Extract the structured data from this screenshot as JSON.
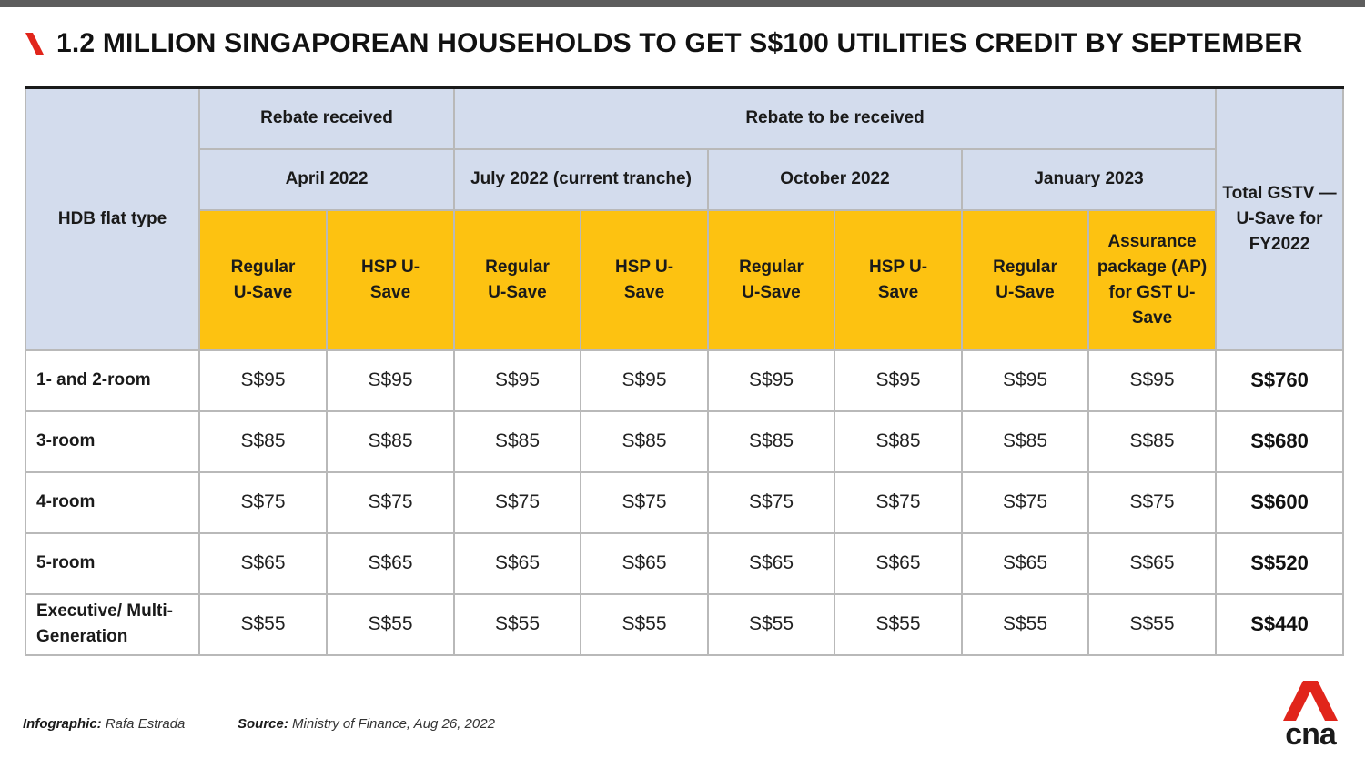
{
  "title": "1.2 MILLION SINGAPOREAN HOUSEHOLDS TO GET S$100 UTILITIES CREDIT BY SEPTEMBER",
  "icons": {
    "title_mark": "red-slash-icon",
    "logo": "cna-logo-icon"
  },
  "colors": {
    "accent_red": "#e1251b",
    "header_blue": "#d3dced",
    "header_yellow": "#fdc211"
  },
  "table": {
    "flat_type_header": "HDB flat type",
    "group_headers": {
      "received": "Rebate received",
      "to_be_received": "Rebate to be received"
    },
    "periods": [
      "April 2022",
      "July 2022 (current tranche)",
      "October 2022",
      "January 2023"
    ],
    "subcolumns": [
      "Regular U-Save",
      "HSP U-Save",
      "Regular U-Save",
      "HSP U-Save",
      "Regular U-Save",
      "HSP U-Save",
      "Regular U-Save",
      "Assurance package (AP) for GST U-Save"
    ],
    "total_header": "Total GSTV — U-Save for FY2022",
    "rows": [
      {
        "label": "1- and 2-room",
        "values": [
          "S$95",
          "S$95",
          "S$95",
          "S$95",
          "S$95",
          "S$95",
          "S$95",
          "S$95"
        ],
        "total": "S$760"
      },
      {
        "label": "3-room",
        "values": [
          "S$85",
          "S$85",
          "S$85",
          "S$85",
          "S$85",
          "S$85",
          "S$85",
          "S$85"
        ],
        "total": "S$680"
      },
      {
        "label": "4-room",
        "values": [
          "S$75",
          "S$75",
          "S$75",
          "S$75",
          "S$75",
          "S$75",
          "S$75",
          "S$75"
        ],
        "total": "S$600"
      },
      {
        "label": "5-room",
        "values": [
          "S$65",
          "S$65",
          "S$65",
          "S$65",
          "S$65",
          "S$65",
          "S$65",
          "S$65"
        ],
        "total": "S$520"
      },
      {
        "label": "Executive/ Multi-Generation",
        "values": [
          "S$55",
          "S$55",
          "S$55",
          "S$55",
          "S$55",
          "S$55",
          "S$55",
          "S$55"
        ],
        "total": "S$440"
      }
    ]
  },
  "footer": {
    "credit_label": "Infographic:",
    "credit_value": "Rafa Estrada",
    "source_label": "Source:",
    "source_value": "Ministry of Finance, Aug 26, 2022"
  },
  "logo_text": "cna"
}
